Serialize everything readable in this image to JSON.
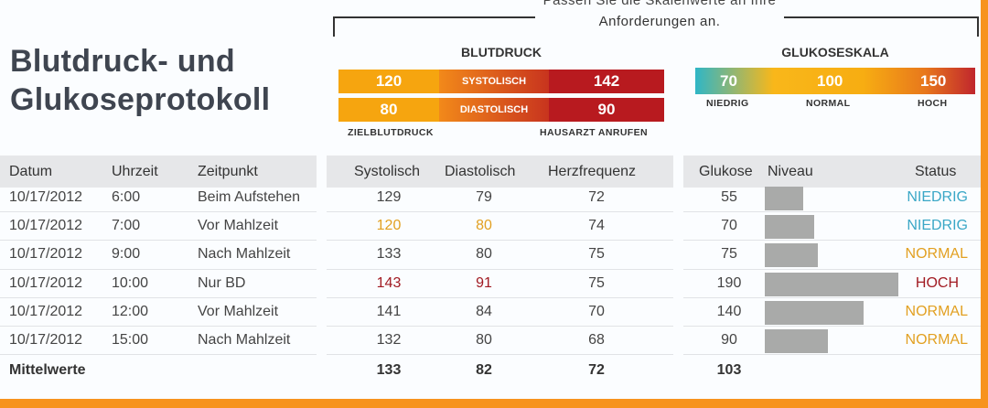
{
  "note": {
    "line1": "Passen Sie die Skalenwerte an Ihre",
    "line2": "Anforderungen an."
  },
  "title": {
    "line1": "Blutdruck- und",
    "line2": "Glukoseprotokoll"
  },
  "blutdruck": {
    "heading": "BLUTDRUCK",
    "sys_target": "120",
    "sys_label": "SYSTOLISCH",
    "sys_call": "142",
    "dia_target": "80",
    "dia_label": "DIASTOLISCH",
    "dia_call": "90",
    "caption_left": "ZIELBLUTDRUCK",
    "caption_right": "HAUSARZT ANRUFEN"
  },
  "glukose": {
    "heading": "GLUKOSESKALA",
    "low_value": "70",
    "normal_value": "100",
    "high_value": "150",
    "low_label": "NIEDRIG",
    "normal_label": "NORMAL",
    "high_label": "HOCH"
  },
  "columns": {
    "datum": "Datum",
    "uhrzeit": "Uhrzeit",
    "zeitpunkt": "Zeitpunkt",
    "systolisch": "Systolisch",
    "diastolisch": "Diastolisch",
    "herzfrequenz": "Herzfrequenz",
    "glukose": "Glukose",
    "niveau": "Niveau",
    "status": "Status"
  },
  "rows": [
    {
      "datum": "10/17/2012",
      "uhrzeit": "6:00",
      "zeitpunkt": "Beim Aufstehen",
      "sys": "129",
      "dia": "79",
      "hf": "72",
      "glukose": "55",
      "niveau": 55,
      "status": "NIEDRIG",
      "sys_flag": "",
      "dia_flag": "",
      "status_flag": "low"
    },
    {
      "datum": "10/17/2012",
      "uhrzeit": "7:00",
      "zeitpunkt": "Vor Mahlzeit",
      "sys": "120",
      "dia": "80",
      "hf": "74",
      "glukose": "70",
      "niveau": 70,
      "status": "NIEDRIG",
      "sys_flag": "norm",
      "dia_flag": "norm",
      "status_flag": "low"
    },
    {
      "datum": "10/17/2012",
      "uhrzeit": "9:00",
      "zeitpunkt": "Nach Mahlzeit",
      "sys": "133",
      "dia": "80",
      "hf": "75",
      "glukose": "75",
      "niveau": 75,
      "status": "NORMAL",
      "sys_flag": "",
      "dia_flag": "",
      "status_flag": "norm"
    },
    {
      "datum": "10/17/2012",
      "uhrzeit": "10:00",
      "zeitpunkt": "Nur BD",
      "sys": "143",
      "dia": "91",
      "hf": "75",
      "glukose": "190",
      "niveau": 190,
      "status": "HOCH",
      "sys_flag": "high",
      "dia_flag": "high",
      "status_flag": "high"
    },
    {
      "datum": "10/17/2012",
      "uhrzeit": "12:00",
      "zeitpunkt": "Vor Mahlzeit",
      "sys": "141",
      "dia": "84",
      "hf": "70",
      "glukose": "140",
      "niveau": 140,
      "status": "NORMAL",
      "sys_flag": "",
      "dia_flag": "",
      "status_flag": "norm"
    },
    {
      "datum": "10/17/2012",
      "uhrzeit": "15:00",
      "zeitpunkt": "Nach Mahlzeit",
      "sys": "132",
      "dia": "80",
      "hf": "68",
      "glukose": "90",
      "niveau": 90,
      "status": "NORMAL",
      "sys_flag": "",
      "dia_flag": "",
      "status_flag": "norm"
    }
  ],
  "summary": {
    "label": "Mittelwerte",
    "sys": "133",
    "dia": "82",
    "hf": "72",
    "glukose": "103"
  },
  "colors": {
    "frame": "#f7931e",
    "low": "#3aa7c6",
    "normal": "#e2a021",
    "high": "#a11a22",
    "bar": "#a9aaa9"
  }
}
